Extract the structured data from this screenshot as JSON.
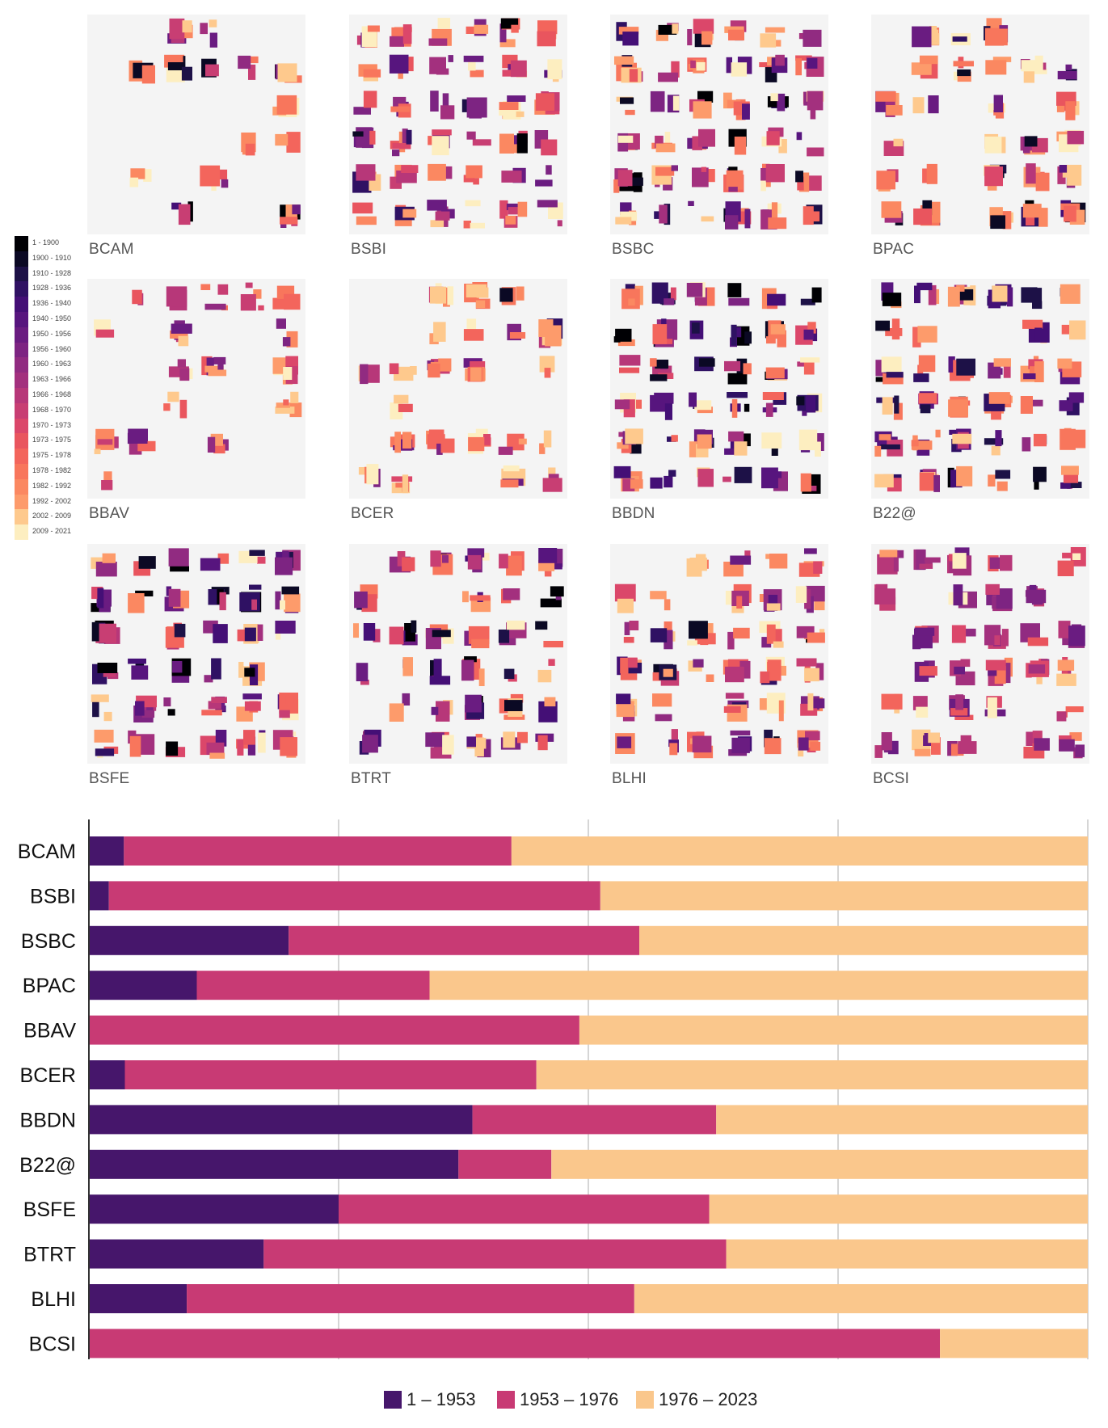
{
  "age_legend": {
    "items": [
      {
        "label": "1 - 1900",
        "color": "#000004"
      },
      {
        "label": "1900 - 1910",
        "color": "#0b0924"
      },
      {
        "label": "1910 - 1928",
        "color": "#1d1147"
      },
      {
        "label": "1928 - 1936",
        "color": "#2f1163"
      },
      {
        "label": "1936 - 1940",
        "color": "#440f76"
      },
      {
        "label": "1940 - 1950",
        "color": "#57157e"
      },
      {
        "label": "1950 - 1956",
        "color": "#6a1c81"
      },
      {
        "label": "1956 - 1960",
        "color": "#7d2482"
      },
      {
        "label": "1960 - 1963",
        "color": "#912b81"
      },
      {
        "label": "1963 - 1966",
        "color": "#a3307e"
      },
      {
        "label": "1966 - 1968",
        "color": "#b73779"
      },
      {
        "label": "1968 - 1970",
        "color": "#c83e73"
      },
      {
        "label": "1970 - 1973",
        "color": "#db476a"
      },
      {
        "label": "1973 - 1975",
        "color": "#e9555e"
      },
      {
        "label": "1975 - 1978",
        "color": "#f3655c"
      },
      {
        "label": "1978 - 1982",
        "color": "#f8765c"
      },
      {
        "label": "1982 - 1992",
        "color": "#fb8861"
      },
      {
        "label": "1992 - 2002",
        "color": "#fd9b6b"
      },
      {
        "label": "2002 - 2009",
        "color": "#fec98d"
      },
      {
        "label": "2009 - 2021",
        "color": "#fdeec0"
      }
    ]
  },
  "maps": [
    {
      "label": "BCAM"
    },
    {
      "label": "BSBI"
    },
    {
      "label": "BSBC"
    },
    {
      "label": "BPAC"
    },
    {
      "label": "BBAV"
    },
    {
      "label": "BCER"
    },
    {
      "label": "BBDN"
    },
    {
      "label": "B22@"
    },
    {
      "label": "BSFE"
    },
    {
      "label": "BTRT"
    },
    {
      "label": "BLHI"
    },
    {
      "label": "BCSI"
    }
  ],
  "chart_data": {
    "type": "bar",
    "orientation": "horizontal",
    "stacked": true,
    "normalized": true,
    "categories": [
      "BCAM",
      "BSBI",
      "BSBC",
      "BPAC",
      "BBAV",
      "BCER",
      "BBDN",
      "B22@",
      "BSFE",
      "BTRT",
      "BLHI",
      "BCSI"
    ],
    "series": [
      {
        "name": "1 – 1953",
        "color": "#46166b",
        "values": [
          3.5,
          2.0,
          20.0,
          10.8,
          0.0,
          3.6,
          38.4,
          37.0,
          25.0,
          17.5,
          9.8,
          0.0
        ]
      },
      {
        "name": "1953 – 1976",
        "color": "#c83a74",
        "values": [
          38.8,
          49.2,
          35.1,
          23.3,
          49.1,
          41.2,
          24.4,
          9.3,
          37.1,
          46.3,
          44.8,
          85.2
        ]
      },
      {
        "name": "1976 – 2023",
        "color": "#fac78c",
        "values": [
          57.7,
          48.8,
          44.9,
          65.9,
          50.9,
          55.2,
          37.2,
          53.7,
          37.9,
          36.2,
          45.4,
          14.8
        ]
      }
    ],
    "xlim": [
      0,
      100
    ],
    "grid": true,
    "gridlines_at": [
      25,
      50,
      75
    ],
    "legend_position": "bottom-center"
  },
  "legend": {
    "items": [
      {
        "label": "1 – 1953",
        "color": "#46166b"
      },
      {
        "label": "1953 – 1976",
        "color": "#c83a74"
      },
      {
        "label": "1976 – 2023",
        "color": "#fac78c"
      }
    ]
  }
}
